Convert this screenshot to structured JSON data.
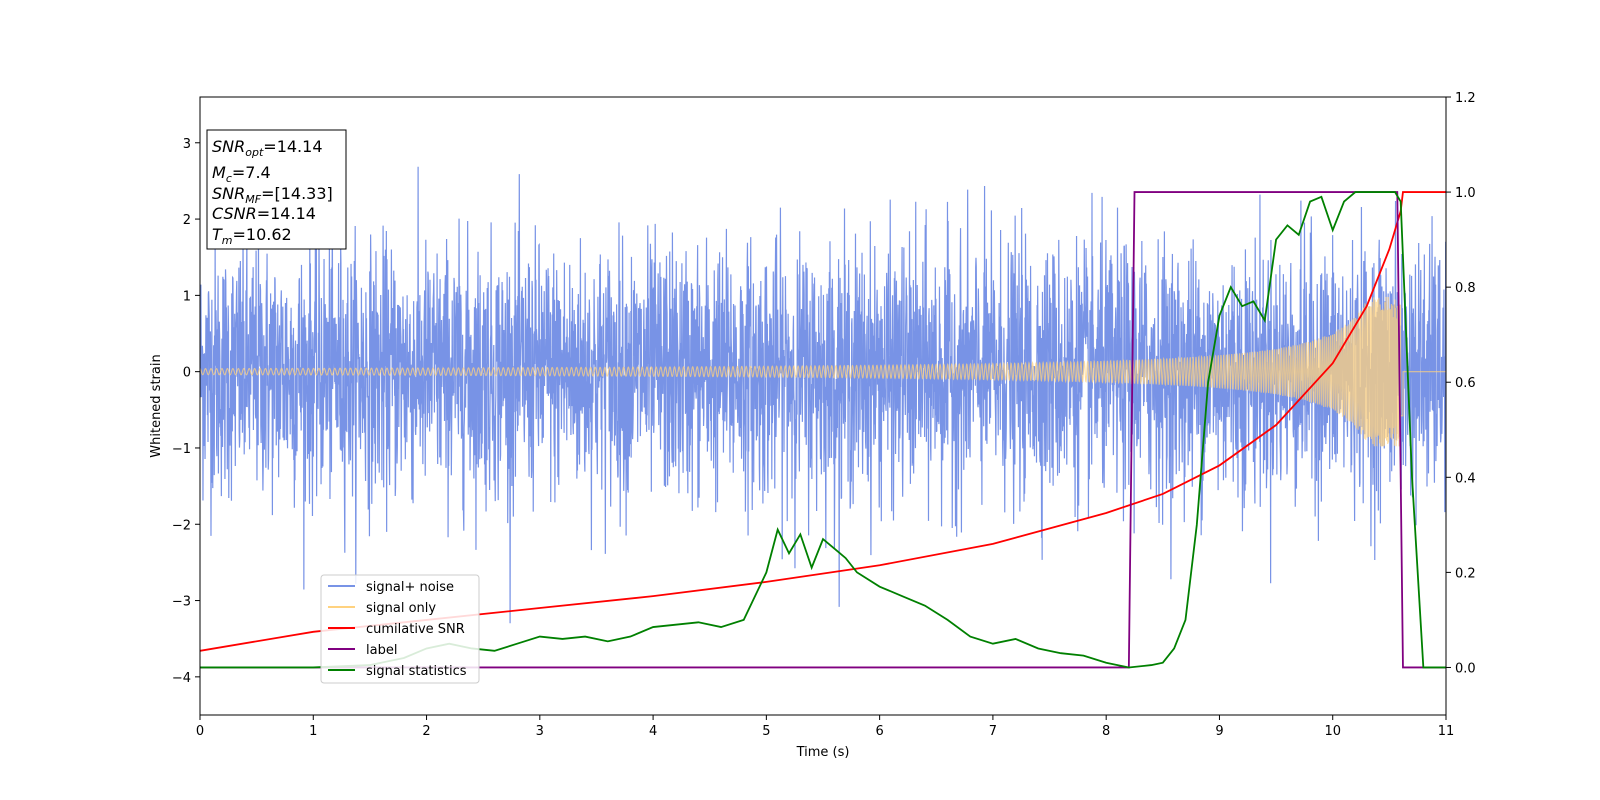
{
  "chart_data": {
    "type": "line",
    "xlabel": "Time (s)",
    "ylabel": "Whitened strain",
    "xlim": [
      0,
      11
    ],
    "ylim_left": [
      -4.5,
      3.6
    ],
    "ylim_right": [
      -0.1,
      1.2
    ],
    "x_ticks": [
      0,
      1,
      2,
      3,
      4,
      5,
      6,
      7,
      8,
      9,
      10,
      11
    ],
    "y_ticks_left": [
      -4,
      -3,
      -2,
      -1,
      0,
      1,
      2,
      3
    ],
    "y_ticks_left_labels": [
      "−4",
      "−3",
      "−2",
      "−1",
      "0",
      "1",
      "2",
      "3"
    ],
    "y_ticks_right": [
      0.0,
      0.2,
      0.4,
      0.6,
      0.8,
      1.0,
      1.2
    ],
    "y_ticks_right_labels": [
      "0.0",
      "0.2",
      "0.4",
      "0.6",
      "0.8",
      "1.0",
      "1.2"
    ],
    "grid": false,
    "legend_placement": "lower-left",
    "info_box": {
      "snr_opt": "14.14",
      "mc": "7.4",
      "snr_mf": "[14.33]",
      "csnr": "14.14",
      "tm": "10.62"
    },
    "series": [
      {
        "name": "signal+ noise",
        "axis": "left",
        "color": "#7893e6",
        "kind": "noise_band",
        "x_range": [
          0,
          11
        ],
        "sigma": 1.0,
        "peak_amplitude": 3.05
      },
      {
        "name": "signal only",
        "axis": "left",
        "color": "#ffd27f",
        "kind": "chirp",
        "merger_time": 10.62,
        "start_amplitude": 0.04,
        "peak_amplitude": 0.98
      },
      {
        "name": "cumilative SNR",
        "axis": "right",
        "color": "#ff0000",
        "x": [
          0,
          1,
          2,
          3,
          4,
          5,
          6,
          7,
          8,
          8.5,
          9,
          9.5,
          10,
          10.3,
          10.5,
          10.6,
          10.62,
          11
        ],
        "y": [
          0.035,
          0.075,
          0.1,
          0.125,
          0.15,
          0.18,
          0.215,
          0.26,
          0.325,
          0.365,
          0.425,
          0.51,
          0.64,
          0.76,
          0.88,
          0.96,
          1.0,
          1.0
        ]
      },
      {
        "name": "label",
        "axis": "right",
        "color": "#800080",
        "x": [
          0,
          8.2,
          8.25,
          10.57,
          10.62,
          11
        ],
        "y": [
          0,
          0,
          1,
          1,
          0,
          0
        ]
      },
      {
        "name": "signal statistics",
        "axis": "right",
        "color": "#008000",
        "x": [
          0,
          1,
          1.5,
          1.8,
          2,
          2.2,
          2.4,
          2.6,
          2.8,
          3,
          3.2,
          3.4,
          3.6,
          3.8,
          4,
          4.2,
          4.4,
          4.6,
          4.8,
          5,
          5.1,
          5.2,
          5.3,
          5.4,
          5.5,
          5.6,
          5.7,
          5.8,
          6,
          6.2,
          6.4,
          6.6,
          6.8,
          7,
          7.2,
          7.4,
          7.6,
          7.8,
          8,
          8.2,
          8.4,
          8.5,
          8.6,
          8.7,
          8.8,
          8.9,
          9,
          9.1,
          9.2,
          9.3,
          9.4,
          9.5,
          9.6,
          9.7,
          9.8,
          9.9,
          10,
          10.1,
          10.2,
          10.4,
          10.55,
          10.6,
          10.7,
          10.8,
          11
        ],
        "y": [
          0,
          0,
          0.005,
          0.02,
          0.04,
          0.05,
          0.04,
          0.035,
          0.05,
          0.065,
          0.06,
          0.065,
          0.055,
          0.065,
          0.085,
          0.09,
          0.095,
          0.085,
          0.1,
          0.2,
          0.29,
          0.24,
          0.28,
          0.21,
          0.27,
          0.25,
          0.23,
          0.2,
          0.17,
          0.15,
          0.13,
          0.1,
          0.065,
          0.05,
          0.06,
          0.04,
          0.03,
          0.025,
          0.01,
          0.0,
          0.005,
          0.01,
          0.04,
          0.1,
          0.3,
          0.6,
          0.74,
          0.8,
          0.76,
          0.77,
          0.73,
          0.9,
          0.93,
          0.91,
          0.98,
          0.99,
          0.92,
          0.98,
          1.0,
          1.0,
          1.0,
          0.98,
          0.4,
          0.0,
          0.0
        ]
      }
    ]
  }
}
